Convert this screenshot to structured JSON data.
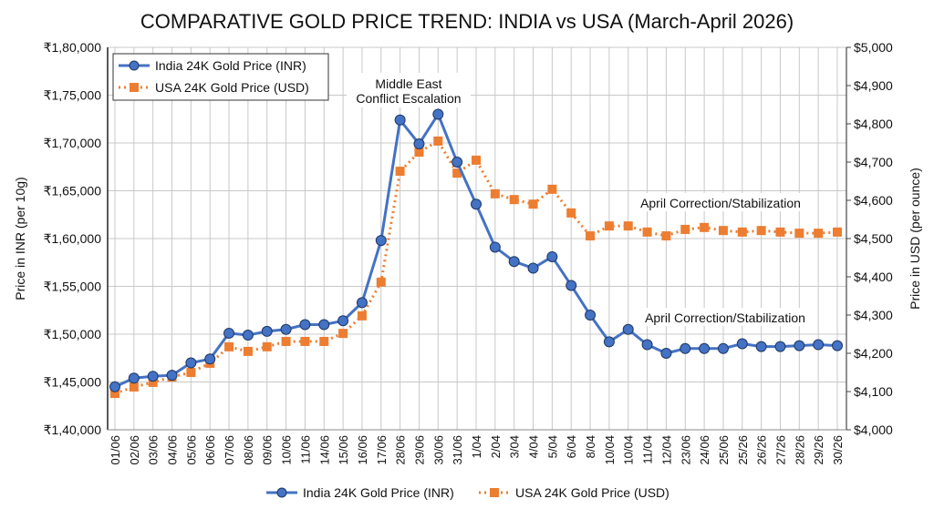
{
  "chart_data": {
    "type": "line",
    "title": "COMPARATIVE GOLD PRICE TREND: INDIA vs USA (March-April 2026)",
    "ylabel_left": "Price in INR (per 10g)",
    "ylabel_right": "Price in USD (per ounce)",
    "ylim_left": [
      140000,
      180000
    ],
    "ylim_right": [
      4000,
      5000
    ],
    "yticks_left": [
      "₹1,40,000",
      "₹1,45,000",
      "₹1,50,000",
      "₹1,55,000",
      "₹1,60,000",
      "₹1,65,000",
      "₹1,70,000",
      "₹1,75,000",
      "₹1,80,000"
    ],
    "yticks_right": [
      "$4,000",
      "$4,100",
      "$4,200",
      "$4,300",
      "$4,400",
      "$4,500",
      "$4,600",
      "$4,700",
      "$4,800",
      "$4,900",
      "$5,000"
    ],
    "grid": true,
    "legend_placement": "top-left and bottom",
    "categories": [
      "01/06",
      "02/06",
      "03/06",
      "04/06",
      "05/06",
      "06/06",
      "07/06",
      "08/06",
      "09/06",
      "10/06",
      "11/06",
      "14/06",
      "15/06",
      "16/06",
      "17/06",
      "28/06",
      "29/06",
      "30/06",
      "31/06",
      "1/04",
      "2/04",
      "3/04",
      "4/04",
      "5/04",
      "6/04",
      "8/04",
      "10/04",
      "10/04",
      "11/04",
      "12/04",
      "23/06",
      "24/06",
      "25/06",
      "25/26",
      "26/26",
      "27/26",
      "28/26",
      "29/26",
      "30/26"
    ],
    "series": [
      {
        "name": "India 24K Gold Price (INR)",
        "axis": "left",
        "color": "#4472c4",
        "marker": "circle",
        "values": [
          144500,
          145400,
          145600,
          145700,
          147000,
          147400,
          150100,
          149900,
          150300,
          150500,
          151000,
          151000,
          151400,
          153300,
          159800,
          172400,
          169900,
          173000,
          168000,
          163600,
          159100,
          157600,
          156900,
          158100,
          155100,
          152000,
          149200,
          150500,
          148900,
          148000,
          148500,
          148500,
          148500,
          149000,
          148700,
          148700,
          148800,
          148900,
          148800
        ]
      },
      {
        "name": "USA 24K Gold Price (USD)",
        "axis": "right",
        "color": "#ed7d31",
        "marker": "square",
        "values": [
          4095,
          4112,
          4124,
          4138,
          4150,
          4174,
          4217,
          4205,
          4217,
          4231,
          4231,
          4231,
          4252,
          4298,
          4386,
          4676,
          4726,
          4755,
          4671,
          4705,
          4617,
          4602,
          4590,
          4629,
          4567,
          4507,
          4533,
          4533,
          4517,
          4507,
          4524,
          4529,
          4521,
          4517,
          4521,
          4517,
          4514,
          4514,
          4517
        ]
      }
    ],
    "annotations": {
      "conflict_line1": "Middle East",
      "conflict_line2": "Conflict Escalation",
      "april_usa": "April Correction/Stabilization",
      "april_india": "April Correction/Stabilization"
    }
  }
}
